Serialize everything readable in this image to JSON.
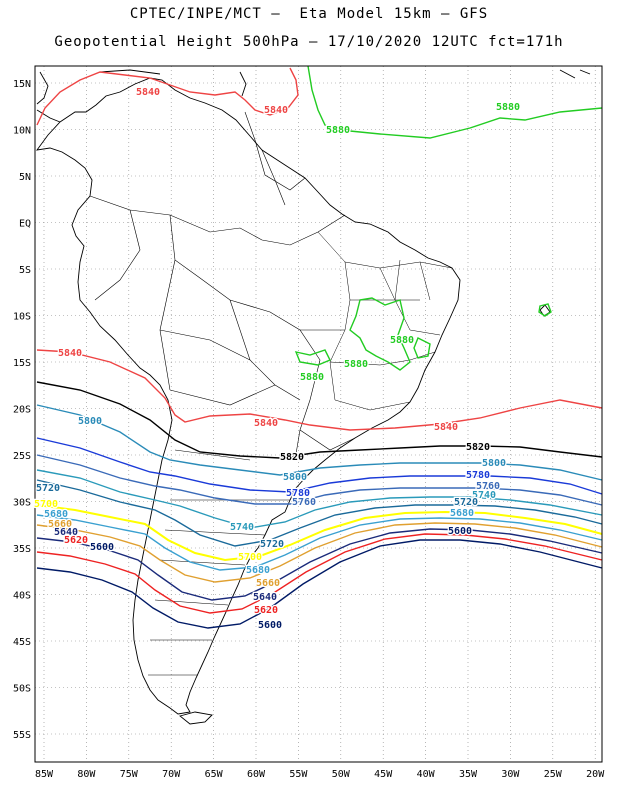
{
  "header": {
    "line1": "CPTEC/INPE/MCT –  Eta Model 15km – GFS",
    "line2": "Geopotential Height 500hPa – 17/10/2020 12UTC fct=171h"
  },
  "map": {
    "lon_ticks": [
      "85W",
      "80W",
      "75W",
      "70W",
      "65W",
      "60W",
      "55W",
      "50W",
      "45W",
      "40W",
      "35W",
      "30W",
      "25W",
      "20W"
    ],
    "lat_ticks": [
      "15N",
      "10N",
      "5N",
      "EQ",
      "5S",
      "10S",
      "15S",
      "20S",
      "25S",
      "30S",
      "35S",
      "40S",
      "45S",
      "50S",
      "55S"
    ]
  },
  "colors": {
    "c5880": "#22cc22",
    "c5840": "#ee4444",
    "c5820": "#000000",
    "c5800": "#2a8bb8",
    "c5780": "#1a3ad8",
    "c5760": "#3a6ab8",
    "c5740": "#2a9aba",
    "c5720": "#1a6a9a",
    "c5700": "#ffff00",
    "c5680": "#3aa0d0",
    "c5660": "#e0a030",
    "c5640": "#1a2a7a",
    "c5620": "#ee2222",
    "c5600": "#001a66"
  },
  "contours": {
    "labels": [
      {
        "text": "5840",
        "key": "c5840"
      },
      {
        "text": "5840",
        "key": "c5840"
      },
      {
        "text": "5880",
        "key": "c5880"
      },
      {
        "text": "5880",
        "key": "c5880"
      },
      {
        "text": "5880",
        "key": "c5880"
      },
      {
        "text": "5880",
        "key": "c5880"
      },
      {
        "text": "5880",
        "key": "c5880"
      },
      {
        "text": "5840",
        "key": "c5840"
      },
      {
        "text": "5840",
        "key": "c5840"
      },
      {
        "text": "5840",
        "key": "c5840"
      },
      {
        "text": "5820",
        "key": "c5820"
      },
      {
        "text": "5820",
        "key": "c5820"
      },
      {
        "text": "5800",
        "key": "c5800"
      },
      {
        "text": "5800",
        "key": "c5800"
      },
      {
        "text": "5800",
        "key": "c5800"
      },
      {
        "text": "5780",
        "key": "c5780"
      },
      {
        "text": "5780",
        "key": "c5780"
      },
      {
        "text": "5760",
        "key": "c5760"
      },
      {
        "text": "5760",
        "key": "c5760"
      },
      {
        "text": "5740",
        "key": "c5740"
      },
      {
        "text": "5740",
        "key": "c5740"
      },
      {
        "text": "5720",
        "key": "c5720"
      },
      {
        "text": "5720",
        "key": "c5720"
      },
      {
        "text": "5720",
        "key": "c5720"
      },
      {
        "text": "5700",
        "key": "c5700"
      },
      {
        "text": "5700",
        "key": "c5700"
      },
      {
        "text": "5680",
        "key": "c5680"
      },
      {
        "text": "5680",
        "key": "c5680"
      },
      {
        "text": "5680",
        "key": "c5680"
      },
      {
        "text": "5660",
        "key": "c5660"
      },
      {
        "text": "5660",
        "key": "c5660"
      },
      {
        "text": "5640",
        "key": "c5640"
      },
      {
        "text": "5640",
        "key": "c5640"
      },
      {
        "text": "5620",
        "key": "c5620"
      },
      {
        "text": "5620",
        "key": "c5620"
      },
      {
        "text": "5600",
        "key": "c5600"
      },
      {
        "text": "5600",
        "key": "c5600"
      },
      {
        "text": "5600",
        "key": "c5600"
      }
    ]
  }
}
